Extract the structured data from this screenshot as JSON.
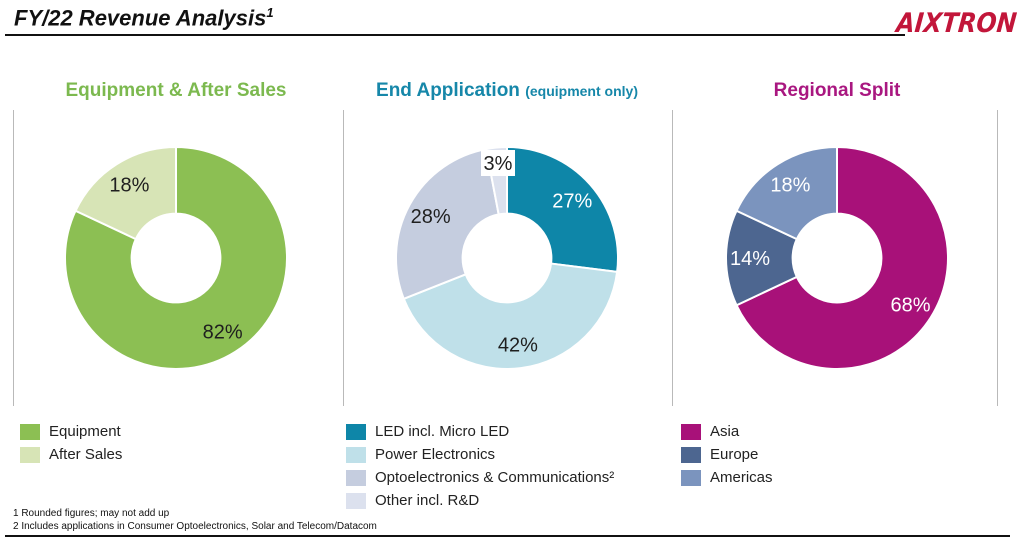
{
  "header": {
    "title": "FY/22 Revenue Analysis",
    "title_sup": "1",
    "logo_text": "AIXTRON",
    "logo_color": "#C2163A"
  },
  "chart_data": [
    {
      "type": "pie",
      "donut": true,
      "hole_ratio": 0.4,
      "start_angle_deg": 0,
      "direction": "clockwise",
      "title": "Equipment & After Sales",
      "subtitle": "",
      "title_color": "#7CB94F",
      "legend_position": "bottom-left",
      "segments": [
        {
          "label": "Equipment",
          "value_pct": 82,
          "display": "82%",
          "color": "#8CBF53",
          "label_color": "#1f1f1f"
        },
        {
          "label": "After Sales",
          "value_pct": 18,
          "display": "18%",
          "color": "#D7E4B6",
          "label_color": "#1f1f1f"
        }
      ]
    },
    {
      "type": "pie",
      "donut": true,
      "hole_ratio": 0.4,
      "start_angle_deg": 0,
      "direction": "clockwise",
      "title": "End Application",
      "subtitle": "(equipment only)",
      "title_color": "#1687A9",
      "legend_position": "bottom-left",
      "segments": [
        {
          "label": "LED incl. Micro LED",
          "value_pct": 27,
          "display": "27%",
          "color": "#0E86A8",
          "label_color": "#ffffff"
        },
        {
          "label": "Power Electronics",
          "value_pct": 42,
          "display": "42%",
          "color": "#BFE0E9",
          "label_color": "#1f1f1f"
        },
        {
          "label": "Optoelectronics & Communications²",
          "value_pct": 28,
          "display": "28%",
          "color": "#C5CDDF",
          "label_color": "#1f1f1f"
        },
        {
          "label": "Other incl. R&D",
          "value_pct": 3,
          "display": "3%",
          "color": "#DCE1EE",
          "label_color": "#1f1f1f",
          "label_bg": "#ffffff",
          "label_radius_factor": 0.86
        }
      ]
    },
    {
      "type": "pie",
      "donut": true,
      "hole_ratio": 0.4,
      "start_angle_deg": 0,
      "direction": "clockwise",
      "title": "Regional Split",
      "subtitle": "",
      "title_color": "#A91780",
      "legend_position": "bottom-left",
      "segments": [
        {
          "label": "Asia",
          "value_pct": 68,
          "display": "68%",
          "color": "#A81179",
          "label_color": "#ffffff"
        },
        {
          "label": "Europe",
          "value_pct": 14,
          "display": "14%",
          "color": "#4D6690",
          "label_color": "#ffffff"
        },
        {
          "label": "Americas",
          "value_pct": 18,
          "display": "18%",
          "color": "#7B94BE",
          "label_color": "#ffffff"
        }
      ]
    }
  ],
  "footnotes": [
    "1 Rounded figures; may not add up",
    "2 Includes applications in Consumer Optoelectronics, Solar and Telecom/Datacom"
  ]
}
